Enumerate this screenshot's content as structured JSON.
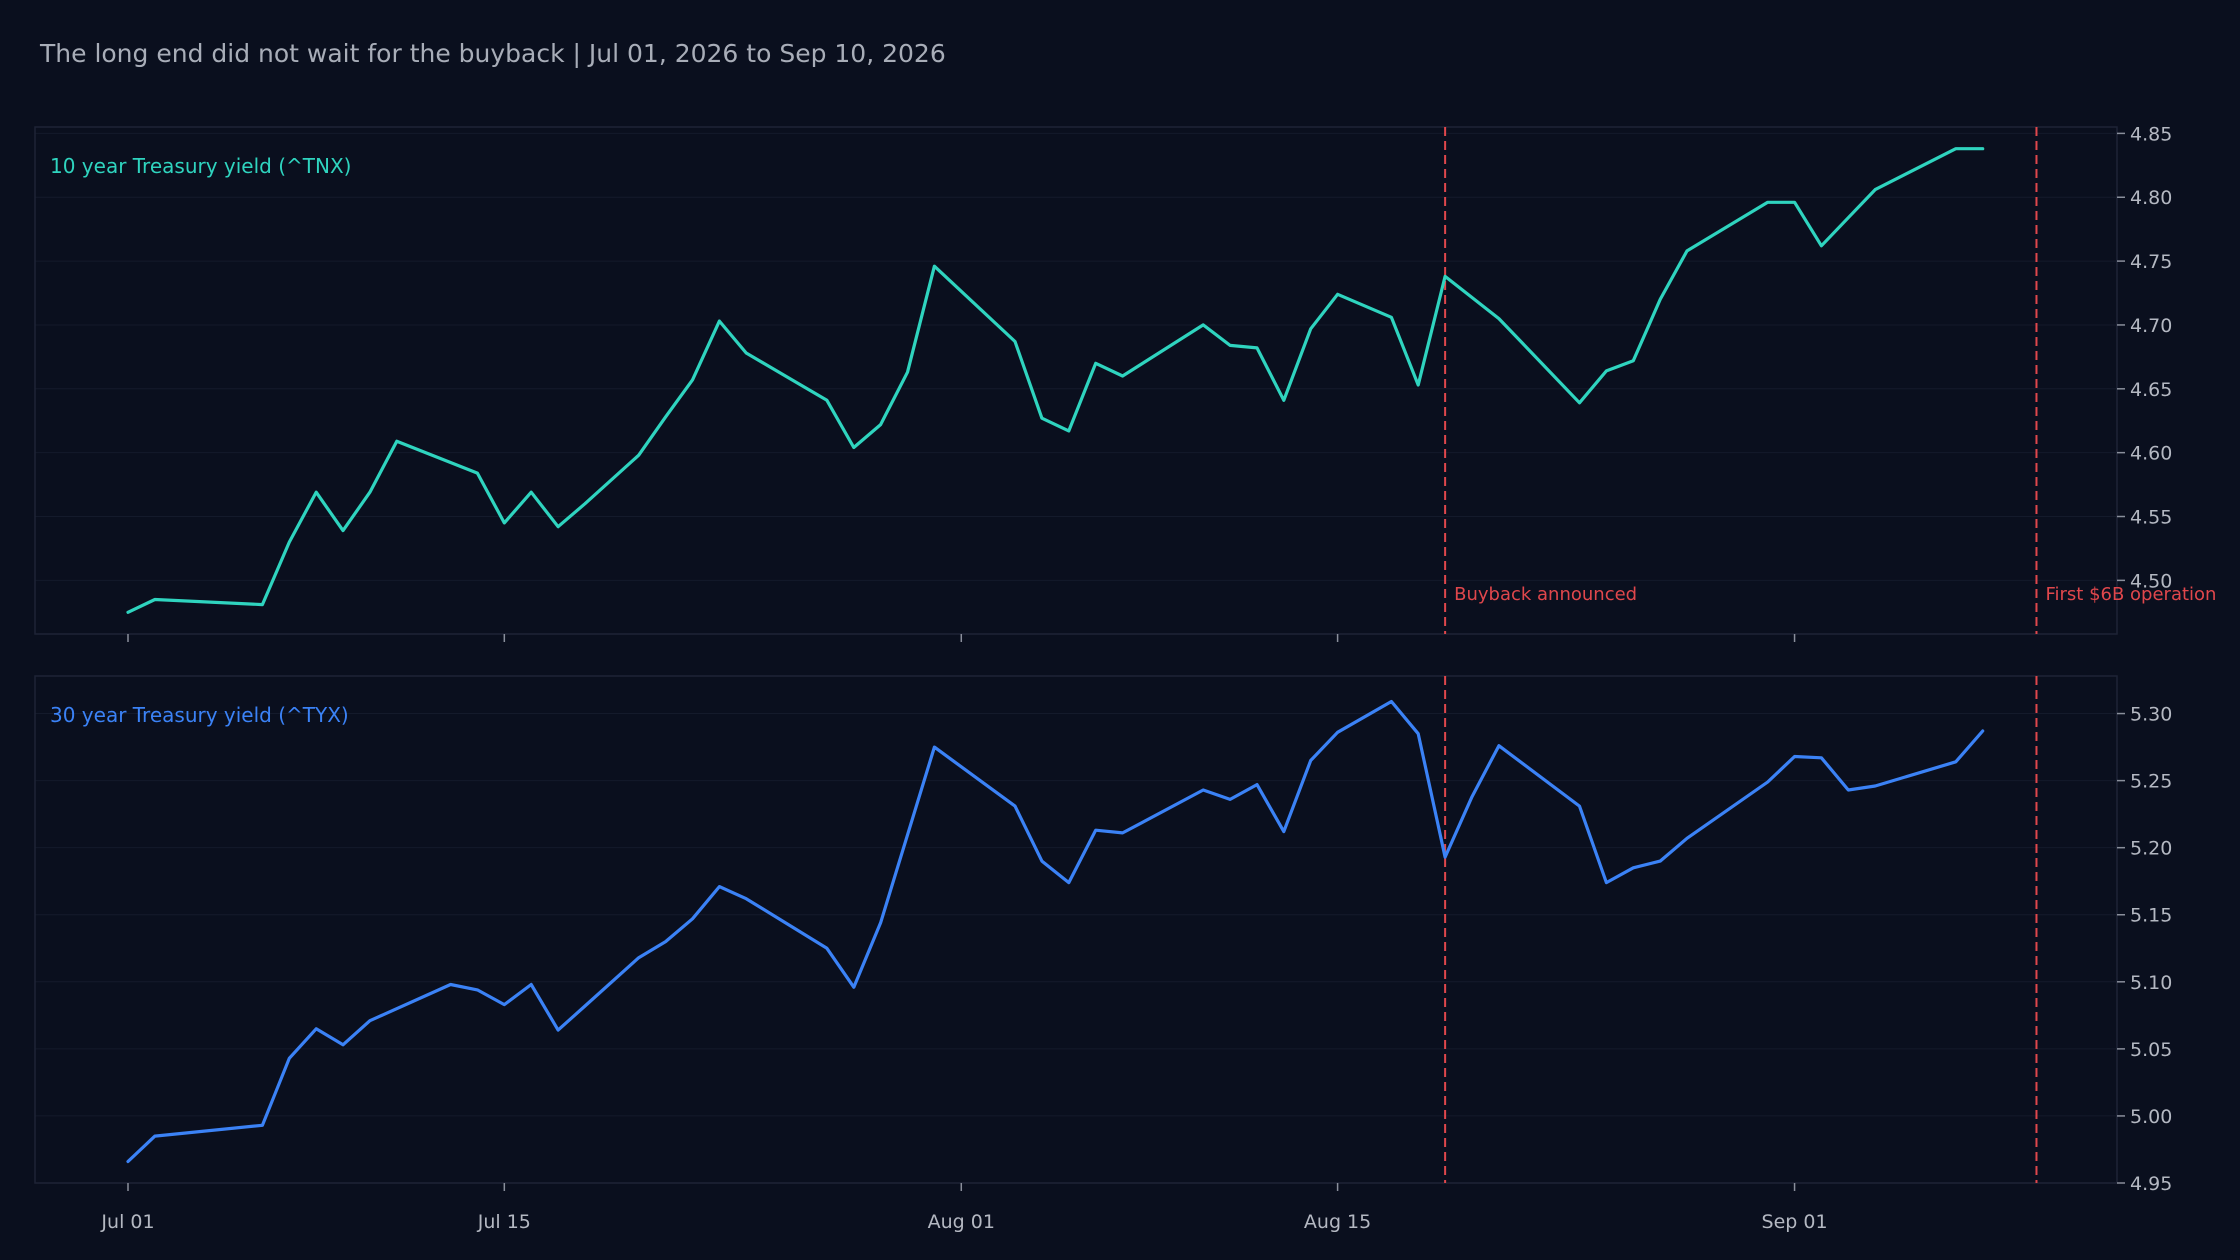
{
  "title": "The long end did not wait for the buyback | Jul 01, 2026 to Sep 10, 2026",
  "colors": {
    "background": "#0a0f1e",
    "tnx": "#2fd4bf",
    "tyx": "#3b82f6",
    "event": "#e0474c",
    "frame": "#1e2436",
    "grid": "#141a2b"
  },
  "x_ticks": [
    {
      "day": 0,
      "label": "Jul 01"
    },
    {
      "day": 14,
      "label": "Jul 15"
    },
    {
      "day": 31,
      "label": "Aug 01"
    },
    {
      "day": 45,
      "label": "Aug 15"
    },
    {
      "day": 62,
      "label": "Sep 01"
    }
  ],
  "events": [
    {
      "day": 49,
      "label": "Buyback announced"
    },
    {
      "day": 71,
      "label": "First $6B operation"
    }
  ],
  "chart_data": [
    {
      "type": "line",
      "series": [
        {
          "name": "10 year Treasury yield (^TNX)",
          "x": [
            0,
            1,
            5,
            6,
            7,
            8,
            9,
            10,
            13,
            14,
            15,
            16,
            17,
            19,
            20,
            21,
            22,
            23,
            26,
            27,
            28,
            29,
            30,
            33,
            34,
            35,
            36,
            37,
            40,
            41,
            42,
            43,
            44,
            45,
            47,
            48,
            49,
            51,
            54,
            55,
            56,
            57,
            58,
            61,
            62,
            63,
            64,
            65,
            68,
            69
          ],
          "values": [
            4.475,
            4.485,
            4.481,
            4.53,
            4.569,
            4.539,
            4.569,
            4.609,
            4.584,
            4.545,
            4.569,
            4.542,
            4.56,
            4.598,
            4.628,
            4.657,
            4.703,
            4.678,
            4.641,
            4.604,
            4.622,
            4.663,
            4.746,
            4.687,
            4.627,
            4.617,
            4.67,
            4.66,
            4.7,
            4.684,
            4.682,
            4.641,
            4.697,
            4.724,
            4.706,
            4.653,
            4.738,
            4.705,
            4.639,
            4.664,
            4.672,
            4.72,
            4.758,
            4.796,
            4.796,
            4.762,
            4.784,
            4.806,
            4.838,
            4.838
          ]
        }
      ],
      "y_ticks": [
        4.5,
        4.55,
        4.6,
        4.65,
        4.7,
        4.75,
        4.8,
        4.85
      ],
      "ylim": [
        4.458,
        4.855
      ]
    },
    {
      "type": "line",
      "series": [
        {
          "name": "30 year Treasury yield (^TYX)",
          "x": [
            0,
            1,
            5,
            6,
            7,
            8,
            9,
            12,
            13,
            14,
            15,
            16,
            17,
            19,
            20,
            21,
            22,
            23,
            26,
            27,
            28,
            30,
            33,
            34,
            35,
            36,
            37,
            40,
            41,
            42,
            43,
            44,
            45,
            47,
            48,
            49,
            50,
            51,
            54,
            55,
            56,
            57,
            58,
            61,
            62,
            63,
            64,
            65,
            68,
            69
          ],
          "values": [
            4.966,
            4.985,
            4.993,
            5.043,
            5.065,
            5.053,
            5.071,
            5.098,
            5.094,
            5.083,
            5.098,
            5.064,
            5.082,
            5.118,
            5.13,
            5.147,
            5.171,
            5.162,
            5.125,
            5.096,
            5.144,
            5.275,
            5.231,
            5.19,
            5.174,
            5.213,
            5.211,
            5.243,
            5.236,
            5.247,
            5.212,
            5.265,
            5.286,
            5.309,
            5.285,
            5.193,
            5.238,
            5.276,
            5.231,
            5.174,
            5.185,
            5.19,
            5.207,
            5.249,
            5.268,
            5.267,
            5.243,
            5.246,
            5.264,
            5.287
          ]
        }
      ],
      "y_ticks": [
        4.95,
        5.0,
        5.05,
        5.1,
        5.15,
        5.2,
        5.25,
        5.3
      ],
      "ylim": [
        4.95,
        5.328
      ]
    }
  ]
}
